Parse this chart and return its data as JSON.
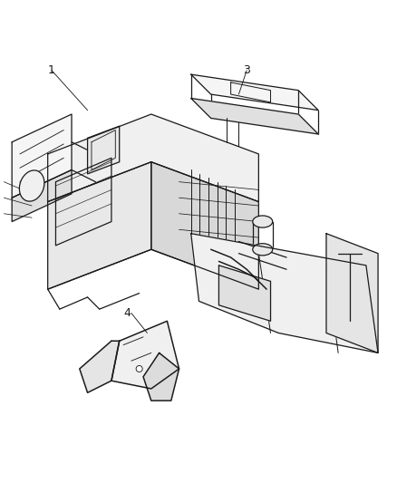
{
  "title": "",
  "background_color": "#ffffff",
  "line_color": "#1a1a1a",
  "line_width": 0.9,
  "label_color": "#1a1a1a",
  "label_fontsize": 9,
  "label_font": "DejaVu Sans",
  "labels": {
    "1": [
      0.13,
      0.93
    ],
    "3": [
      0.62,
      0.93
    ],
    "4": [
      0.32,
      0.32
    ]
  },
  "figsize": [
    4.39,
    5.33
  ],
  "dpi": 100
}
